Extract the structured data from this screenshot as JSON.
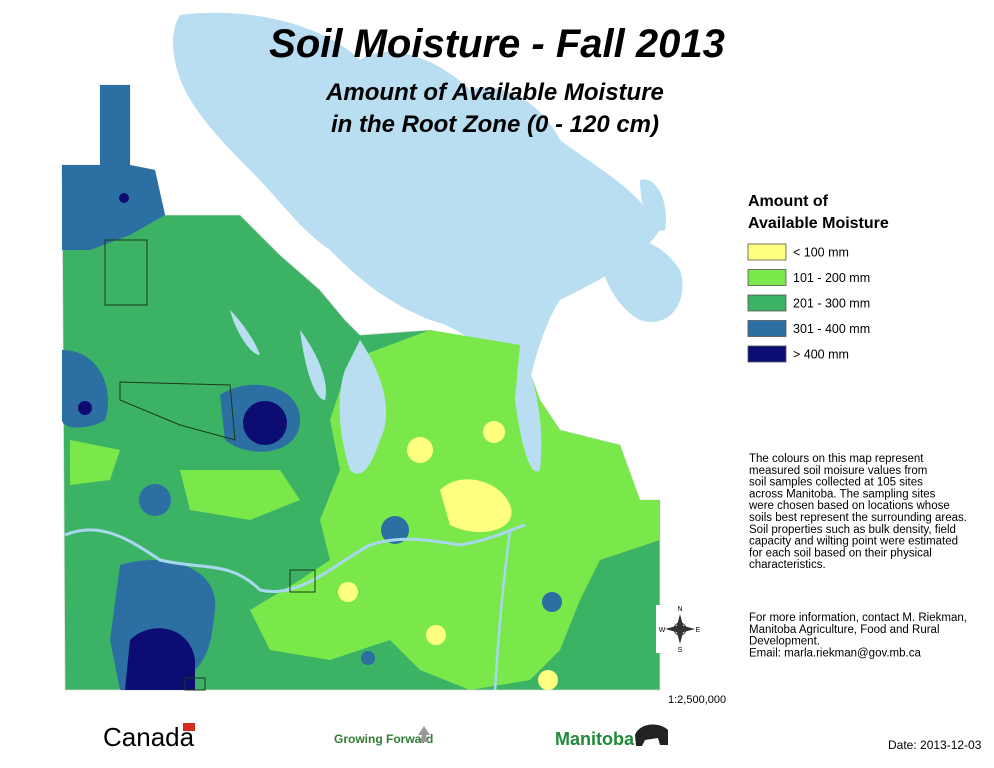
{
  "title": "Soil Moisture - Fall 2013",
  "subtitle": [
    "Amount of Available Moisture",
    "in the Root Zone (0 - 120 cm)"
  ],
  "legend": {
    "title": [
      "Amount of",
      "Available Moisture"
    ],
    "items": [
      {
        "label": "< 100 mm",
        "color": "#ffff80"
      },
      {
        "label": "101 - 200 mm",
        "color": "#7ae84a"
      },
      {
        "label": "201 - 300 mm",
        "color": "#3cb364"
      },
      {
        "label": "301 - 400 mm",
        "color": "#2b6fa3"
      },
      {
        "label": "> 400 mm",
        "color": "#0c0c72"
      }
    ]
  },
  "description": [
    "The colours on this map represent",
    "measured soil moisure values from",
    "soil samples collected at 105 sites",
    "across Manitoba. The sampling sites",
    "were chosen based on locations whose",
    "soils best represent the surrounding areas.",
    "Soil properties such as bulk density, field",
    "capacity and wilting point were estimated",
    "for each soil based on their physical",
    "characteristics."
  ],
  "contact": [
    "For more information, contact M. Riekman,",
    "Manitoba Agriculture, Food and Rural",
    "Development.",
    "Email: marla.riekman@gov.mb.ca"
  ],
  "compass": [
    "N",
    "E",
    "S",
    "W"
  ],
  "scale": "1:2,500,000",
  "logos": [
    "Canada",
    "Growing Forward",
    "Manitoba"
  ],
  "date": "Date: 2013-12-03"
}
